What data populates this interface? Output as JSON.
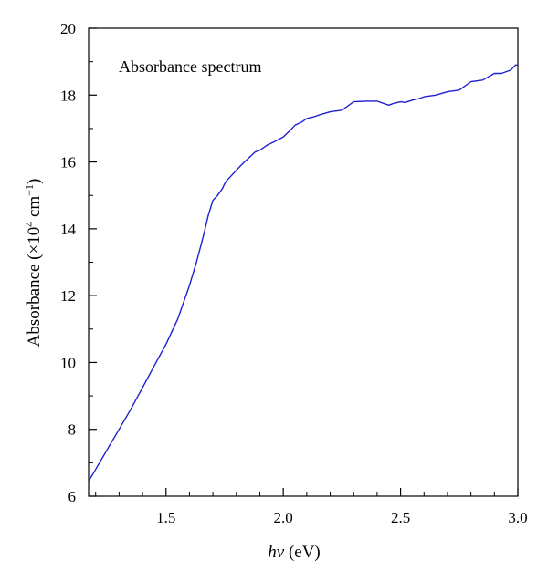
{
  "chart_data": {
    "type": "line",
    "title": "",
    "annotation": "Absorbance spectrum",
    "xlabel": {
      "italic": "hν",
      "rest": " (eV)"
    },
    "ylabel": {
      "main": "Absorbance (×10",
      "sup1": "4",
      "mid": " cm",
      "sup2": "−1",
      "end": ")"
    },
    "xlim": [
      1.17,
      3.0
    ],
    "ylim": [
      6,
      20
    ],
    "x_ticks": [
      {
        "value": 1.5,
        "label": "1.5"
      },
      {
        "value": 2.0,
        "label": "2.0"
      },
      {
        "value": 2.5,
        "label": "2.5"
      },
      {
        "value": 3.0,
        "label": "3.0"
      }
    ],
    "y_ticks": [
      {
        "value": 6,
        "label": "6"
      },
      {
        "value": 8,
        "label": "8"
      },
      {
        "value": 10,
        "label": "10"
      },
      {
        "value": 12,
        "label": "12"
      },
      {
        "value": 14,
        "label": "14"
      },
      {
        "value": 16,
        "label": "16"
      },
      {
        "value": 18,
        "label": "18"
      },
      {
        "value": 20,
        "label": "20"
      }
    ],
    "x_minor_step": 0.1,
    "y_minor_step": 1,
    "grid": false,
    "series_color": "#1f1fd0",
    "series": [
      {
        "x": [
          1.17,
          1.2,
          1.25,
          1.3,
          1.35,
          1.4,
          1.45,
          1.5,
          1.55,
          1.6,
          1.63,
          1.66,
          1.68,
          1.7,
          1.72,
          1.74,
          1.75,
          1.76,
          1.78,
          1.8,
          1.82,
          1.85,
          1.88,
          1.9,
          1.93,
          1.96,
          2.0,
          2.03,
          2.05,
          2.08,
          2.1,
          2.13,
          2.15,
          2.2,
          2.25,
          2.3,
          2.35,
          2.4,
          2.45,
          2.47,
          2.5,
          2.52,
          2.55,
          2.58,
          2.6,
          2.65,
          2.7,
          2.75,
          2.8,
          2.85,
          2.9,
          2.93,
          2.95,
          2.97,
          2.99,
          3.0
        ],
        "y": [
          6.45,
          6.8,
          7.4,
          8.0,
          8.6,
          9.25,
          9.9,
          10.55,
          11.3,
          12.3,
          13.0,
          13.8,
          14.4,
          14.85,
          15.0,
          15.2,
          15.35,
          15.45,
          15.6,
          15.75,
          15.9,
          16.1,
          16.3,
          16.35,
          16.5,
          16.6,
          16.75,
          16.95,
          17.1,
          17.2,
          17.3,
          17.35,
          17.4,
          17.5,
          17.55,
          17.8,
          17.82,
          17.82,
          17.7,
          17.75,
          17.8,
          17.78,
          17.85,
          17.9,
          17.95,
          18.0,
          18.1,
          18.15,
          18.4,
          18.45,
          18.65,
          18.65,
          18.7,
          18.75,
          18.9,
          18.9
        ]
      }
    ]
  }
}
